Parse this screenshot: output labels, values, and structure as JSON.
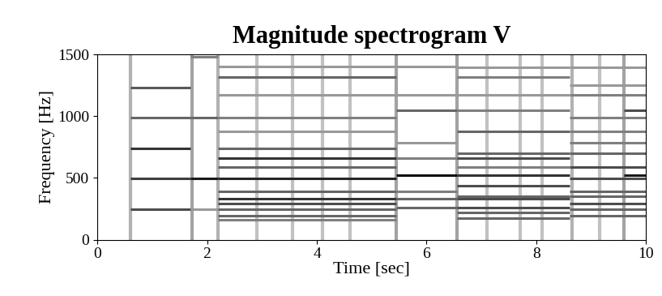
{
  "chart_data": {
    "type": "spectrogram",
    "title": "Magnitude spectrogram V",
    "x_label": "Time [sec]",
    "y_label": "Frequency [Hz]",
    "xlim": [
      0,
      10
    ],
    "xticks": [
      0,
      2,
      4,
      6,
      8,
      10
    ],
    "ylim": [
      0,
      1500
    ],
    "yticks": [
      0,
      500,
      1000,
      1500
    ],
    "color": "gray_r",
    "level_range": [
      0,
      1
    ],
    "onsets": [
      {
        "t": 0.6,
        "level": 0.5
      },
      {
        "t": 1.73,
        "level": 0.6
      },
      {
        "t": 2.2,
        "level": 0.5
      },
      {
        "t": 2.9,
        "level": 0.4
      },
      {
        "t": 3.55,
        "level": 0.4
      },
      {
        "t": 4.1,
        "level": 0.4
      },
      {
        "t": 4.6,
        "level": 0.4
      },
      {
        "t": 5.45,
        "level": 0.6
      },
      {
        "t": 6.55,
        "level": 0.6
      },
      {
        "t": 7.1,
        "level": 0.4
      },
      {
        "t": 7.7,
        "level": 0.4
      },
      {
        "t": 8.1,
        "level": 0.4
      },
      {
        "t": 8.65,
        "level": 0.5
      },
      {
        "t": 9.15,
        "level": 0.4
      },
      {
        "t": 9.6,
        "level": 0.6
      }
    ],
    "segments": [
      {
        "t": [
          0.6,
          1.7
        ],
        "f": 247,
        "level": 0.7
      },
      {
        "t": [
          0.6,
          1.7
        ],
        "f": 494,
        "level": 0.75
      },
      {
        "t": [
          0.6,
          1.7
        ],
        "f": 741,
        "level": 0.8
      },
      {
        "t": [
          0.6,
          1.7
        ],
        "f": 988,
        "level": 0.6
      },
      {
        "t": [
          0.6,
          1.7
        ],
        "f": 1235,
        "level": 0.65
      },
      {
        "t": [
          1.7,
          2.2
        ],
        "f": 247,
        "level": 0.4
      },
      {
        "t": [
          1.7,
          2.2
        ],
        "f": 494,
        "level": 0.9
      },
      {
        "t": [
          1.7,
          2.2
        ],
        "f": 988,
        "level": 0.6
      },
      {
        "t": [
          1.7,
          2.2
        ],
        "f": 1480,
        "level": 0.5
      },
      {
        "t": [
          2.2,
          5.45
        ],
        "f": 165,
        "level": 0.5
      },
      {
        "t": [
          2.2,
          5.45
        ],
        "f": 196,
        "level": 0.6
      },
      {
        "t": [
          2.2,
          5.45
        ],
        "f": 247,
        "level": 0.6
      },
      {
        "t": [
          2.2,
          5.45
        ],
        "f": 294,
        "level": 0.7
      },
      {
        "t": [
          2.2,
          5.45
        ],
        "f": 330,
        "level": 0.8
      },
      {
        "t": [
          2.2,
          5.45
        ],
        "f": 392,
        "level": 0.6
      },
      {
        "t": [
          2.2,
          5.45
        ],
        "f": 494,
        "level": 0.85
      },
      {
        "t": [
          2.2,
          5.45
        ],
        "f": 587,
        "level": 0.6
      },
      {
        "t": [
          2.2,
          5.45
        ],
        "f": 659,
        "level": 0.8
      },
      {
        "t": [
          2.2,
          5.45
        ],
        "f": 740,
        "level": 0.6
      },
      {
        "t": [
          2.2,
          5.45
        ],
        "f": 880,
        "level": 0.4
      },
      {
        "t": [
          2.2,
          5.45
        ],
        "f": 988,
        "level": 0.5
      },
      {
        "t": [
          2.2,
          5.45
        ],
        "f": 1175,
        "level": 0.4
      },
      {
        "t": [
          2.2,
          5.45
        ],
        "f": 1320,
        "level": 0.6
      },
      {
        "t": [
          2.2,
          5.45
        ],
        "f": 1400,
        "level": 0.4
      },
      {
        "t": [
          5.45,
          6.55
        ],
        "f": 262,
        "level": 0.6
      },
      {
        "t": [
          5.45,
          6.55
        ],
        "f": 330,
        "level": 0.6
      },
      {
        "t": [
          5.45,
          6.55
        ],
        "f": 392,
        "level": 0.5
      },
      {
        "t": [
          5.45,
          6.55
        ],
        "f": 523,
        "level": 0.95
      },
      {
        "t": [
          5.45,
          6.55
        ],
        "f": 659,
        "level": 0.5
      },
      {
        "t": [
          5.45,
          6.55
        ],
        "f": 784,
        "level": 0.4
      },
      {
        "t": [
          5.45,
          6.55
        ],
        "f": 1047,
        "level": 0.6
      },
      {
        "t": [
          5.45,
          6.55
        ],
        "f": 1175,
        "level": 0.4
      },
      {
        "t": [
          5.45,
          6.55
        ],
        "f": 1400,
        "level": 0.4
      },
      {
        "t": [
          6.55,
          8.6
        ],
        "f": 175,
        "level": 0.6
      },
      {
        "t": [
          6.55,
          8.6
        ],
        "f": 220,
        "level": 0.6
      },
      {
        "t": [
          6.55,
          8.6
        ],
        "f": 262,
        "level": 0.7
      },
      {
        "t": [
          6.55,
          8.6
        ],
        "f": 330,
        "level": 0.7
      },
      {
        "t": [
          6.55,
          8.6
        ],
        "f": 349,
        "level": 0.6
      },
      {
        "t": [
          6.55,
          8.6
        ],
        "f": 440,
        "level": 0.7
      },
      {
        "t": [
          6.55,
          8.6
        ],
        "f": 523,
        "level": 0.8
      },
      {
        "t": [
          6.55,
          8.6
        ],
        "f": 587,
        "level": 0.5
      },
      {
        "t": [
          6.55,
          8.6
        ],
        "f": 659,
        "level": 0.7
      },
      {
        "t": [
          6.55,
          8.6
        ],
        "f": 698,
        "level": 0.6
      },
      {
        "t": [
          6.55,
          8.6
        ],
        "f": 880,
        "level": 0.6
      },
      {
        "t": [
          6.55,
          8.6
        ],
        "f": 1047,
        "level": 0.5
      },
      {
        "t": [
          6.55,
          8.6
        ],
        "f": 1175,
        "level": 0.4
      },
      {
        "t": [
          6.55,
          8.6
        ],
        "f": 1320,
        "level": 0.5
      },
      {
        "t": [
          6.55,
          8.6
        ],
        "f": 1397,
        "level": 0.4
      },
      {
        "t": [
          8.6,
          10
        ],
        "f": 196,
        "level": 0.6
      },
      {
        "t": [
          8.6,
          10
        ],
        "f": 247,
        "level": 0.6
      },
      {
        "t": [
          8.6,
          10
        ],
        "f": 294,
        "level": 0.7
      },
      {
        "t": [
          8.6,
          10
        ],
        "f": 349,
        "level": 0.6
      },
      {
        "t": [
          8.6,
          10
        ],
        "f": 392,
        "level": 0.6
      },
      {
        "t": [
          8.6,
          10
        ],
        "f": 494,
        "level": 0.7
      },
      {
        "t": [
          8.6,
          10
        ],
        "f": 587,
        "level": 0.7
      },
      {
        "t": [
          8.6,
          10
        ],
        "f": 698,
        "level": 0.6
      },
      {
        "t": [
          8.6,
          10
        ],
        "f": 784,
        "level": 0.5
      },
      {
        "t": [
          8.6,
          10
        ],
        "f": 880,
        "level": 0.5
      },
      {
        "t": [
          8.6,
          10
        ],
        "f": 988,
        "level": 0.5
      },
      {
        "t": [
          8.6,
          10
        ],
        "f": 1175,
        "level": 0.5
      },
      {
        "t": [
          8.6,
          10
        ],
        "f": 1250,
        "level": 0.4
      },
      {
        "t": [
          8.6,
          10
        ],
        "f": 1397,
        "level": 0.4
      },
      {
        "t": [
          9.6,
          10
        ],
        "f": 523,
        "level": 0.9
      },
      {
        "t": [
          9.6,
          10
        ],
        "f": 1047,
        "level": 0.7
      }
    ]
  }
}
